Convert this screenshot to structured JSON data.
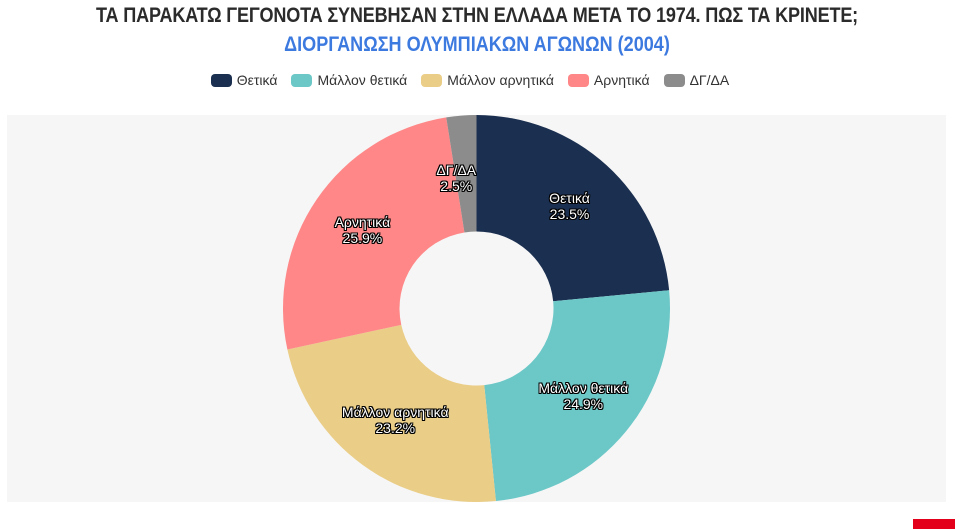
{
  "header": {
    "title": "ΤΑ ΠΑΡΑΚΑΤΩ ΓΕΓΟΝΟΤΑ ΣΥΝΕΒΗΣΑΝ ΣΤΗΝ ΕΛΛΑΔΑ ΜΕΤΑ ΤΟ 1974. ΠΩΣ ΤΑ ΚΡΙΝΕΤΕ;",
    "subtitle": "ΔΙΟΡΓΑΝΩΣΗ ΟΛΥΜΠΙΑΚΩΝ ΑΓΩΝΩΝ (2004)"
  },
  "legend": [
    {
      "label": "Θετικά",
      "color": "#1b2f50"
    },
    {
      "label": "Μάλλον θετικά",
      "color": "#6cc7c7"
    },
    {
      "label": "Μάλλον αρνητικά",
      "color": "#eacd86"
    },
    {
      "label": "Αρνητικά",
      "color": "#ff8787"
    },
    {
      "label": "ΔΓ/ΔΑ",
      "color": "#8c8c8c"
    }
  ],
  "colors": {
    "title": "#2b2b2b",
    "subtitle": "#3d7ae0",
    "plot_background": "#f6f6f6",
    "brand": "#e3001b"
  },
  "slice_labels": [
    {
      "name": "Θετικά",
      "value": "23.5%"
    },
    {
      "name": "Μάλλον θετικά",
      "value": "24.9%"
    },
    {
      "name": "Μάλλον αρνητικά",
      "value": "23.2%"
    },
    {
      "name": "Αρνητικά",
      "value": "25.9%"
    },
    {
      "name": "ΔΓ/ΔΑ",
      "value": "2.5%"
    }
  ],
  "chart_data": {
    "type": "pie",
    "variant": "donut",
    "title": "ΤΑ ΠΑΡΑΚΑΤΩ ΓΕΓΟΝΟΤΑ ΣΥΝΕΒΗΣΑΝ ΣΤΗΝ ΕΛΛΑΔΑ ΜΕΤΑ ΤΟ 1974. ΠΩΣ ΤΑ ΚΡΙΝΕΤΕ;",
    "subtitle": "ΔΙΟΡΓΑΝΩΣΗ ΟΛΥΜΠΙΑΚΩΝ ΑΓΩΝΩΝ (2004)",
    "categories": [
      "Θετικά",
      "Μάλλον θετικά",
      "Μάλλον αρνητικά",
      "Αρνητικά",
      "ΔΓ/ΔΑ"
    ],
    "values": [
      23.5,
      24.9,
      23.2,
      25.9,
      2.5
    ],
    "colors": [
      "#1b2f50",
      "#6cc7c7",
      "#eacd86",
      "#ff8787",
      "#8c8c8c"
    ],
    "unit": "%",
    "start_angle": "top",
    "direction": "clockwise",
    "legend_position": "top",
    "data_labels": "category and percentage inside slices"
  }
}
